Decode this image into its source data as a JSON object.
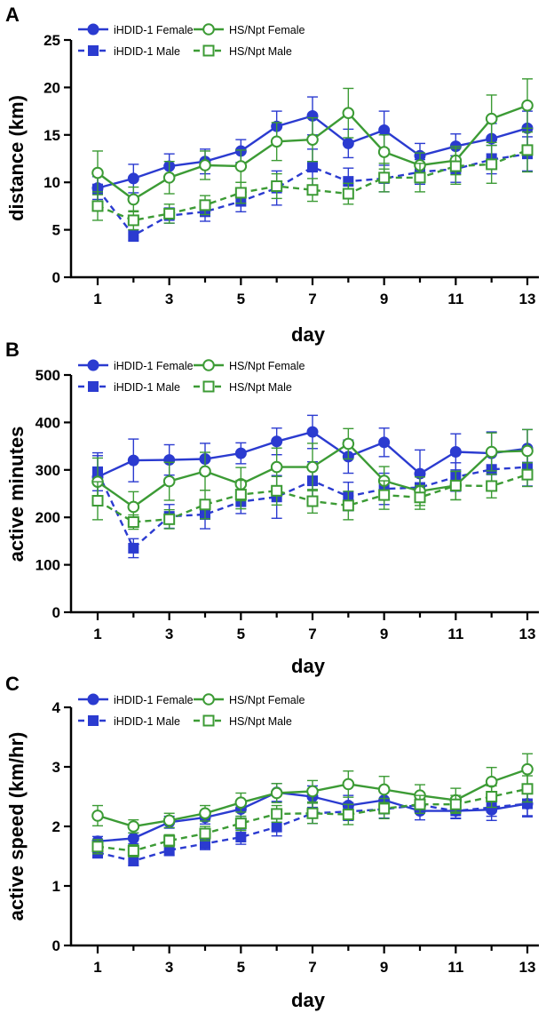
{
  "colors": {
    "blue": "#2B3BD0",
    "green": "#3C9B35",
    "axis": "#000000"
  },
  "legend": {
    "s1": "iHDID-1 Female",
    "s2": "iHDID-1 Male",
    "s3": "HS/Npt Female",
    "s4": "HS/Npt Male"
  },
  "chart_data": [
    {
      "panel": "A",
      "type": "line",
      "xlabel": "day",
      "ylabel": "distance (km)",
      "x": [
        1,
        2,
        3,
        4,
        5,
        6,
        7,
        8,
        9,
        10,
        11,
        12,
        13
      ],
      "xticks": [
        1,
        3,
        5,
        7,
        9,
        11,
        13
      ],
      "yticks": [
        0,
        5,
        10,
        15,
        20,
        25
      ],
      "ylim": [
        0,
        25
      ],
      "legend_position": "top-left",
      "series": [
        {
          "name": "iHDID-1 Female",
          "color": "blue",
          "marker": "circle-filled",
          "dash": false,
          "values": [
            9.4,
            10.4,
            11.7,
            12.2,
            13.3,
            15.9,
            17.0,
            14.1,
            15.5,
            12.8,
            13.8,
            14.6,
            15.7
          ],
          "errors": [
            1.2,
            1.5,
            1.3,
            1.3,
            1.2,
            1.6,
            2.0,
            1.5,
            2.0,
            1.3,
            1.3,
            1.6,
            1.8
          ]
        },
        {
          "name": "iHDID-1 Male",
          "color": "blue",
          "marker": "square-filled",
          "dash": true,
          "values": [
            9.3,
            4.4,
            6.5,
            6.9,
            8.0,
            9.4,
            11.6,
            10.1,
            10.4,
            11.1,
            11.4,
            12.4,
            13.0
          ],
          "errors": [
            1.3,
            0.6,
            0.8,
            1.0,
            1.1,
            1.8,
            1.9,
            1.4,
            1.4,
            1.3,
            1.4,
            1.5,
            1.8
          ]
        },
        {
          "name": "HS/Npt Female",
          "color": "green",
          "marker": "circle-open",
          "dash": false,
          "values": [
            11.0,
            8.2,
            10.5,
            11.8,
            11.7,
            14.3,
            14.5,
            17.3,
            13.2,
            11.8,
            12.3,
            16.7,
            18.1
          ],
          "errors": [
            2.3,
            1.3,
            1.7,
            1.5,
            1.7,
            2.0,
            2.3,
            2.6,
            1.8,
            1.3,
            1.5,
            2.5,
            2.8
          ]
        },
        {
          "name": "HS/Npt Male",
          "color": "green",
          "marker": "square-open",
          "dash": true,
          "values": [
            7.5,
            6.0,
            6.7,
            7.6,
            8.9,
            9.6,
            9.2,
            8.8,
            10.5,
            10.5,
            11.7,
            11.9,
            13.4
          ],
          "errors": [
            1.5,
            1.0,
            1.0,
            1.0,
            1.1,
            1.3,
            1.2,
            1.1,
            1.5,
            1.5,
            1.9,
            2.0,
            2.3
          ]
        }
      ]
    },
    {
      "panel": "B",
      "type": "line",
      "xlabel": "day",
      "ylabel": "active minutes",
      "x": [
        1,
        2,
        3,
        4,
        5,
        6,
        7,
        8,
        9,
        10,
        11,
        12,
        13
      ],
      "xticks": [
        1,
        3,
        5,
        7,
        9,
        11,
        13
      ],
      "yticks": [
        0,
        100,
        200,
        300,
        400,
        500
      ],
      "ylim": [
        0,
        500
      ],
      "legend_position": "top-left",
      "series": [
        {
          "name": "iHDID-1 Female",
          "color": "blue",
          "marker": "circle-filled",
          "dash": false,
          "values": [
            285,
            320,
            321,
            323,
            335,
            360,
            380,
            328,
            358,
            292,
            338,
            335,
            345
          ],
          "errors": [
            45,
            45,
            32,
            33,
            22,
            28,
            35,
            35,
            30,
            50,
            38,
            45,
            40
          ]
        },
        {
          "name": "iHDID-1 Male",
          "color": "blue",
          "marker": "square-filled",
          "dash": true,
          "values": [
            296,
            135,
            202,
            206,
            233,
            243,
            277,
            244,
            260,
            263,
            285,
            301,
            306
          ],
          "errors": [
            40,
            20,
            25,
            30,
            25,
            45,
            40,
            30,
            33,
            30,
            30,
            35,
            40
          ]
        },
        {
          "name": "HS/Npt Female",
          "color": "green",
          "marker": "circle-open",
          "dash": false,
          "values": [
            275,
            222,
            276,
            297,
            270,
            306,
            306,
            355,
            277,
            255,
            267,
            338,
            340
          ],
          "errors": [
            50,
            32,
            40,
            40,
            35,
            40,
            50,
            32,
            30,
            30,
            30,
            40,
            45
          ]
        },
        {
          "name": "HS/Npt Male",
          "color": "green",
          "marker": "square-open",
          "dash": true,
          "values": [
            235,
            190,
            196,
            227,
            248,
            256,
            234,
            225,
            247,
            242,
            267,
            266,
            290
          ],
          "errors": [
            40,
            15,
            20,
            30,
            30,
            30,
            25,
            30,
            30,
            25,
            30,
            25,
            25
          ]
        }
      ]
    },
    {
      "panel": "C",
      "type": "line",
      "xlabel": "day",
      "ylabel": "active speed (km/hr)",
      "x": [
        1,
        2,
        3,
        4,
        5,
        6,
        7,
        8,
        9,
        10,
        11,
        12,
        13
      ],
      "xticks": [
        1,
        3,
        5,
        7,
        9,
        11,
        13
      ],
      "yticks": [
        0,
        1,
        2,
        3,
        4
      ],
      "ylim": [
        0,
        4
      ],
      "legend_position": "top-left",
      "series": [
        {
          "name": "iHDID-1 Female",
          "color": "blue",
          "marker": "circle-filled",
          "dash": false,
          "values": [
            1.75,
            1.8,
            2.07,
            2.15,
            2.29,
            2.57,
            2.5,
            2.35,
            2.44,
            2.26,
            2.26,
            2.28,
            2.38
          ],
          "errors": [
            0.08,
            0.09,
            0.1,
            0.11,
            0.12,
            0.15,
            0.18,
            0.17,
            0.2,
            0.15,
            0.13,
            0.18,
            0.22
          ]
        },
        {
          "name": "iHDID-1 Male",
          "color": "blue",
          "marker": "square-filled",
          "dash": true,
          "values": [
            1.56,
            1.42,
            1.6,
            1.71,
            1.82,
            1.99,
            2.22,
            2.25,
            2.29,
            2.36,
            2.26,
            2.32,
            2.38
          ],
          "errors": [
            0.09,
            0.08,
            0.09,
            0.1,
            0.12,
            0.15,
            0.17,
            0.15,
            0.15,
            0.14,
            0.12,
            0.15,
            0.2
          ]
        },
        {
          "name": "HS/Npt Female",
          "color": "green",
          "marker": "circle-open",
          "dash": false,
          "values": [
            2.18,
            2.0,
            2.1,
            2.22,
            2.4,
            2.56,
            2.59,
            2.71,
            2.62,
            2.52,
            2.44,
            2.75,
            2.96
          ],
          "errors": [
            0.17,
            0.11,
            0.12,
            0.13,
            0.16,
            0.16,
            0.18,
            0.22,
            0.22,
            0.18,
            0.2,
            0.24,
            0.26
          ]
        },
        {
          "name": "HS/Npt Male",
          "color": "green",
          "marker": "square-open",
          "dash": true,
          "values": [
            1.66,
            1.59,
            1.76,
            1.88,
            2.05,
            2.21,
            2.22,
            2.2,
            2.3,
            2.37,
            2.37,
            2.5,
            2.63
          ],
          "errors": [
            0.12,
            0.1,
            0.1,
            0.12,
            0.12,
            0.14,
            0.17,
            0.17,
            0.17,
            0.15,
            0.15,
            0.18,
            0.22
          ]
        }
      ]
    }
  ]
}
